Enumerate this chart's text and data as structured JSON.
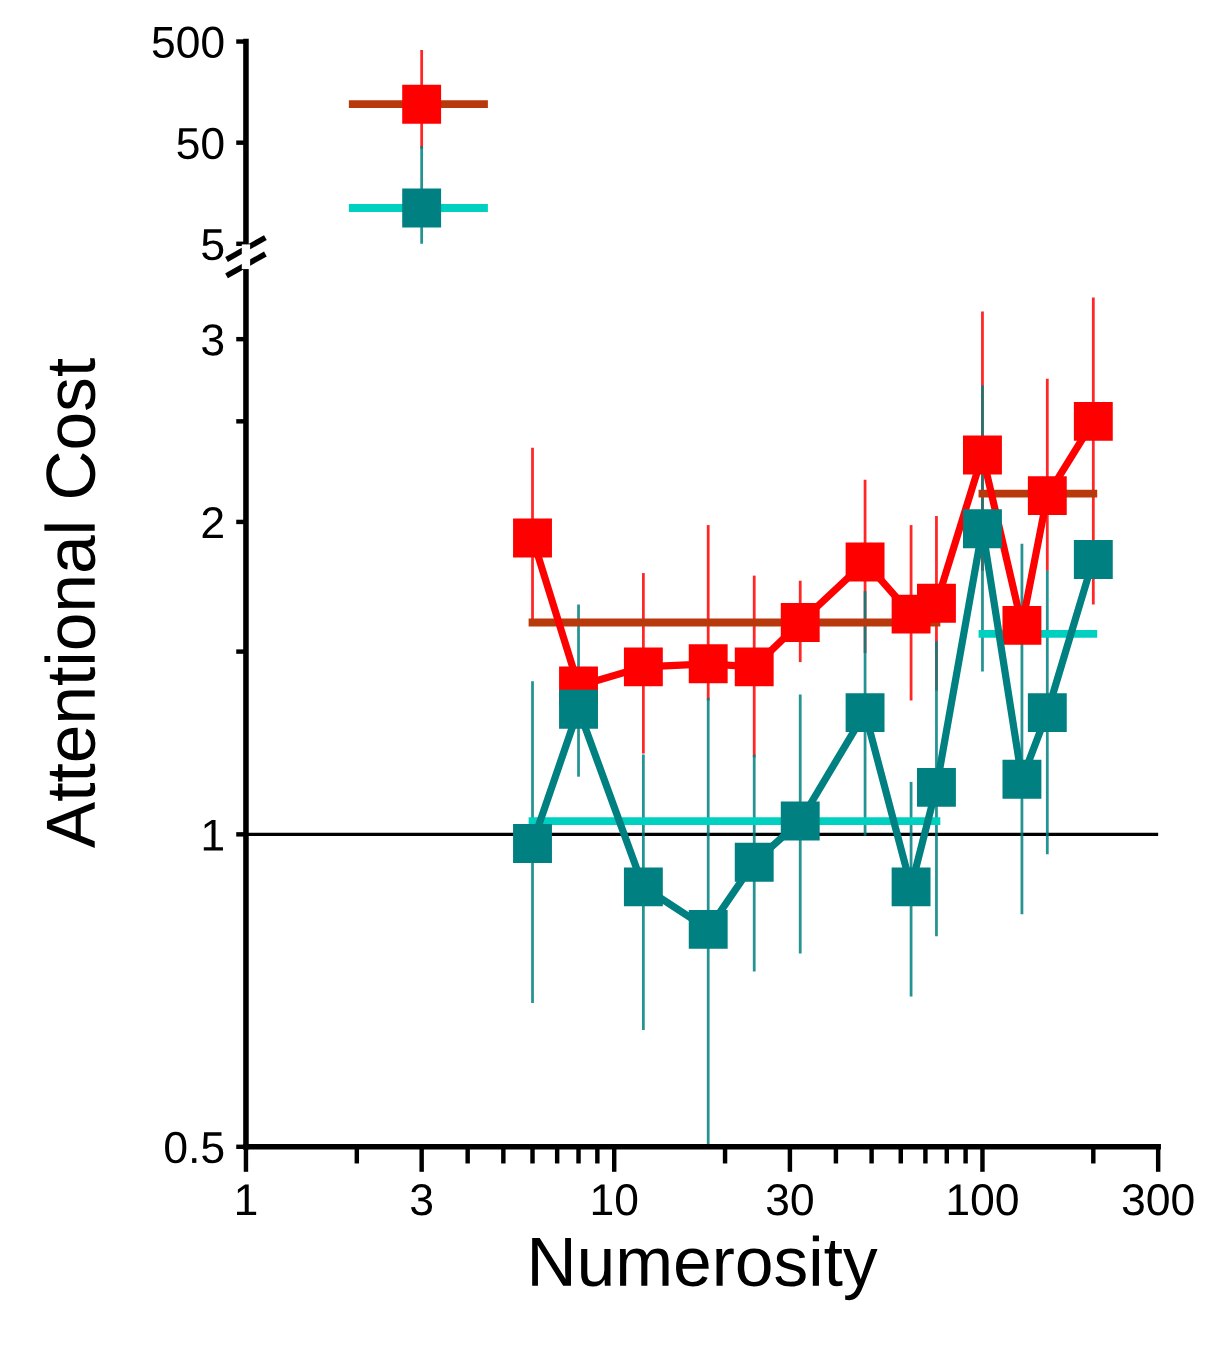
{
  "chart_data": [
    {
      "type": "line",
      "tick_labels": "y",
      "x": [
        3
      ],
      "xlim": [
        1,
        300
      ],
      "ylim": [
        5,
        500
      ],
      "yticks": [
        5,
        50,
        500
      ],
      "log": "xy",
      "marker": "square",
      "grid": false,
      "series": [
        {
          "color": "#ff0000",
          "values": [
            120
          ],
          "errors": [
            [
              45,
              400
            ]
          ]
        },
        {
          "color": "#008080",
          "values": [
            11.3
          ],
          "errors": [
            [
              5,
              45
            ]
          ]
        },
        {
          "type": "line",
          "marker": "none",
          "color": "#b8390b",
          "x": [
            1.95,
            4.43
          ],
          "values": [
            120,
            120
          ]
        },
        {
          "type": "line",
          "marker": "none",
          "color": "#00d0c0",
          "x": [
            1.95,
            4.43
          ],
          "values": [
            11.3,
            11.3
          ]
        }
      ]
    },
    {
      "type": "line",
      "x": [
        6,
        8,
        12,
        18,
        24,
        32,
        48,
        64,
        75,
        100,
        128,
        150,
        200
      ],
      "xlim": [
        1,
        300
      ],
      "xticks": [
        1,
        {
          "value": 2,
          "label": null
        },
        3,
        {
          "value": 4,
          "label": null
        },
        {
          "value": 5,
          "label": null
        },
        {
          "value": 6,
          "label": null
        },
        {
          "value": 7,
          "label": null
        },
        {
          "value": 8,
          "label": null
        },
        {
          "value": 9,
          "label": null
        },
        10,
        {
          "value": 20,
          "label": null
        },
        30,
        {
          "value": 40,
          "label": null
        },
        {
          "value": 50,
          "label": null
        },
        {
          "value": 60,
          "label": null
        },
        {
          "value": 70,
          "label": null
        },
        {
          "value": 80,
          "label": null
        },
        {
          "value": 90,
          "label": null
        },
        100,
        {
          "value": 200,
          "label": null
        },
        300
      ],
      "ylim": [
        0.5,
        3.5
      ],
      "yticks": [
        0.5,
        1,
        {
          "value": 1.5,
          "label": null
        },
        2,
        {
          "value": 2.5,
          "label": null
        },
        3
      ],
      "log": "xy",
      "marker": "square",
      "grid": false,
      "xlabel": "Numerosity",
      "ylabel": "Attentional Cost",
      "ref_lines": [
        {
          "axis": "y",
          "value": 1,
          "color": "#000000"
        }
      ],
      "series": [
        {
          "color": "#ff0000",
          "values": [
            1.93,
            1.39,
            1.45,
            1.46,
            1.45,
            1.6,
            1.83,
            1.63,
            1.67,
            2.32,
            1.59,
            2.12,
            2.5
          ],
          "errors": [
            [
              1.6,
              2.35
            ],
            null,
            [
              1.2,
              1.78
            ],
            [
              1.35,
              1.98
            ],
            [
              1.19,
              1.77
            ],
            [
              1.47,
              1.75
            ],
            [
              1.5,
              2.19
            ],
            [
              1.35,
              1.98
            ],
            [
              1.38,
              2.02
            ],
            [
              1.8,
              3.18
            ],
            null,
            [
              1.8,
              2.74
            ],
            [
              1.67,
              3.28
            ]
          ]
        },
        {
          "color": "#008080",
          "values": [
            0.98,
            1.32,
            0.89,
            0.81,
            0.94,
            1.03,
            1.31,
            0.89,
            1.11,
            1.97,
            1.13,
            1.31,
            1.84
          ],
          "errors": [
            [
              0.69,
              1.4
            ],
            [
              1.14,
              1.66
            ],
            [
              0.65,
              1.19
            ],
            [
              0.5,
              1.35
            ],
            [
              0.74,
              1.19
            ],
            [
              0.77,
              1.36
            ],
            [
              1.0,
              1.71
            ],
            [
              0.7,
              1.12
            ],
            [
              0.8,
              1.53
            ],
            [
              1.44,
              2.7
            ],
            [
              0.84,
              1.9
            ],
            [
              0.96,
              1.79
            ],
            null
          ]
        },
        {
          "type": "line",
          "marker": "none",
          "color": "#b8390b",
          "x": [
            6,
            75
          ],
          "values": [
            1.6,
            1.6
          ]
        },
        {
          "type": "line",
          "marker": "none",
          "color": "#b8390b",
          "x": [
            100,
            200
          ],
          "values": [
            2.13,
            2.13
          ]
        },
        {
          "type": "line",
          "marker": "none",
          "color": "#00d0c0",
          "x": [
            6,
            75
          ],
          "values": [
            1.03,
            1.03
          ]
        },
        {
          "type": "line",
          "marker": "none",
          "color": "#00d0c0",
          "x": [
            100,
            200
          ],
          "values": [
            1.56,
            1.56
          ]
        }
      ]
    }
  ]
}
